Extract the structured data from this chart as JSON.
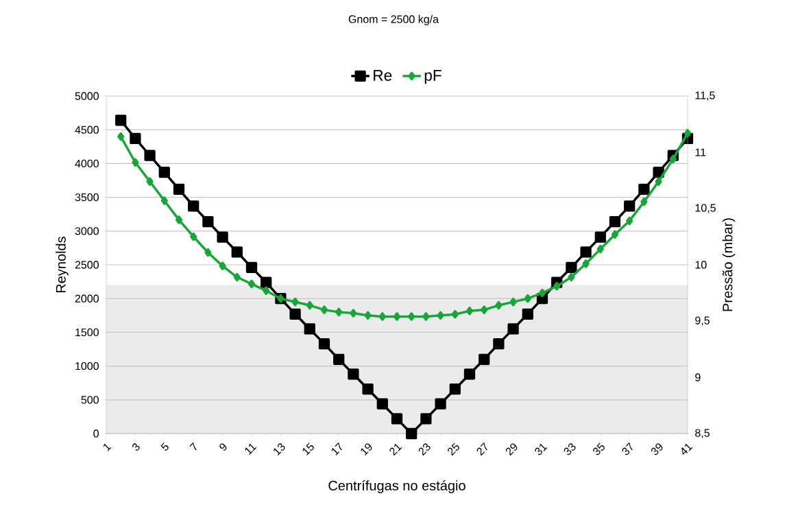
{
  "chart_data": {
    "type": "line",
    "title": "Gnom = 2500 kg/a",
    "xlabel": "Centrífugas no estágio",
    "ylabel": "Reynolds",
    "y2label": "Pressão (mbar)",
    "x": [
      2,
      3,
      4,
      5,
      6,
      7,
      8,
      9,
      10,
      11,
      12,
      13,
      14,
      15,
      16,
      17,
      18,
      19,
      20,
      21,
      22,
      23,
      24,
      25,
      26,
      27,
      28,
      29,
      30,
      31,
      32,
      33,
      34,
      35,
      36,
      37,
      38,
      39,
      40,
      41
    ],
    "series": [
      {
        "name": "Re",
        "color": "#000000",
        "marker": "square",
        "values": [
          4640,
          4370,
          4120,
          3870,
          3620,
          3370,
          3140,
          2910,
          2690,
          2460,
          2240,
          2000,
          1770,
          1550,
          1330,
          1100,
          880,
          660,
          440,
          220,
          0,
          220,
          440,
          660,
          880,
          1100,
          1330,
          1550,
          1770,
          2000,
          2240,
          2460,
          2690,
          2910,
          3140,
          3370,
          3620,
          3870,
          4120,
          4370
        ]
      },
      {
        "name": "pF",
        "color": "#1aa53a",
        "marker": "diamond",
        "axis": "y2",
        "values": [
          11.14,
          10.91,
          10.74,
          10.57,
          10.4,
          10.25,
          10.11,
          9.99,
          9.89,
          9.83,
          9.77,
          9.7,
          9.67,
          9.64,
          9.6,
          9.58,
          9.57,
          9.55,
          9.54,
          9.54,
          9.54,
          9.54,
          9.55,
          9.56,
          9.59,
          9.6,
          9.64,
          9.67,
          9.7,
          9.75,
          9.81,
          9.89,
          10.01,
          10.14,
          10.27,
          10.39,
          10.56,
          10.74,
          10.94,
          11.17
        ]
      }
    ],
    "xlim": [
      1,
      41
    ],
    "xticks": [
      1,
      3,
      5,
      7,
      9,
      11,
      13,
      15,
      17,
      19,
      21,
      23,
      25,
      27,
      29,
      31,
      33,
      35,
      37,
      39,
      41
    ],
    "ylim": [
      0,
      5000
    ],
    "yticks": [
      0,
      500,
      1000,
      1500,
      2000,
      2500,
      3000,
      3500,
      4000,
      4500,
      5000
    ],
    "y2lim": [
      8.5,
      11.5
    ],
    "y2ticks": [
      {
        "value": 8.5,
        "label": "8,5"
      },
      9,
      {
        "value": 9.5,
        "label": "9,5"
      },
      10,
      {
        "value": 10.5,
        "label": "10,5"
      },
      11,
      {
        "value": 11.5,
        "label": "11,5"
      }
    ],
    "bands": [
      {
        "axis": "y",
        "from": 0,
        "to": 2200,
        "color": "#ebebeb"
      }
    ],
    "grid": "y",
    "legend": "top",
    "line_style": "solid"
  }
}
